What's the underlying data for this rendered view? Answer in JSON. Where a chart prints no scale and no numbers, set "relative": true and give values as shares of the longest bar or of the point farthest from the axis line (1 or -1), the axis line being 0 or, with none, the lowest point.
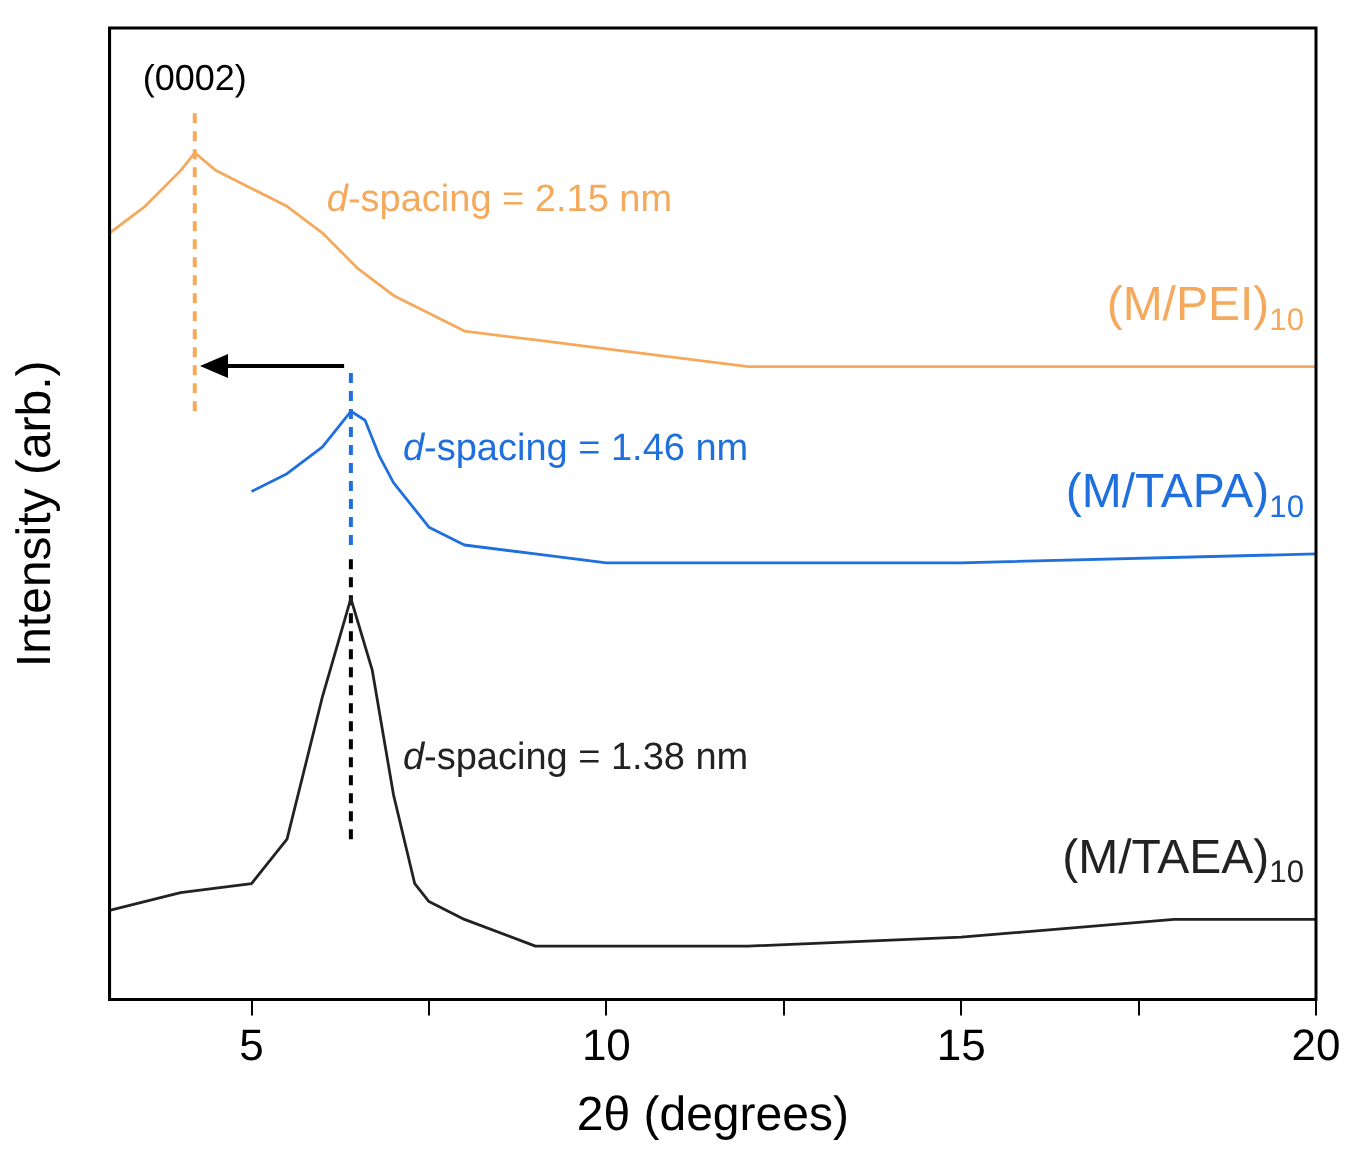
{
  "chart_data": {
    "type": "line",
    "relative": true,
    "xlabel": "2θ (degrees)",
    "ylabel": "Intensity (arb.)",
    "xlim": [
      3,
      20
    ],
    "xticks": [
      5,
      {
        "value": 7.5,
        "label": null
      },
      10,
      {
        "value": 12.5,
        "label": null
      },
      15,
      {
        "value": 17.5,
        "label": null
      },
      20
    ],
    "marker": "none",
    "line_style": "solid",
    "legend": false,
    "grid": false,
    "series": [
      {
        "name": "(M/PEI)$_{10}$",
        "color": "#f5a95c",
        "x": [
          3,
          3.5,
          4,
          4.2,
          4.5,
          5,
          5.5,
          6,
          6.5,
          7,
          7.5,
          8,
          9,
          10,
          12,
          15,
          20
        ],
        "values": [
          0.86,
          0.89,
          0.93,
          0.95,
          0.93,
          0.91,
          0.89,
          0.86,
          0.82,
          0.79,
          0.77,
          0.75,
          0.74,
          0.73,
          0.71,
          0.71,
          0.71
        ]
      },
      {
        "name": "(M/TAPA)$_{10}$",
        "color": "#1f6fdc",
        "x": [
          5,
          5.5,
          6,
          6.2,
          6.4,
          6.6,
          6.8,
          7,
          7.5,
          8,
          9,
          10,
          15,
          20
        ],
        "values": [
          0.57,
          0.59,
          0.62,
          0.64,
          0.66,
          0.65,
          0.61,
          0.58,
          0.53,
          0.51,
          0.5,
          0.49,
          0.49,
          0.5
        ]
      },
      {
        "name": "(M/TAEA)$_{10}$",
        "color": "#222222",
        "x": [
          3,
          4,
          5,
          5.5,
          6,
          6.4,
          6.7,
          7,
          7.3,
          7.5,
          8,
          9,
          10,
          12,
          15,
          18,
          20
        ],
        "values": [
          0.1,
          0.12,
          0.13,
          0.18,
          0.34,
          0.45,
          0.37,
          0.23,
          0.13,
          0.11,
          0.09,
          0.06,
          0.06,
          0.06,
          0.07,
          0.09,
          0.09
        ]
      },
      {
        "color": "#f5a95c",
        "line_style": "dashed",
        "x": [
          4.2,
          4.2
        ],
        "values": [
          0.66,
          1.0
        ]
      },
      {
        "color": "#1f6fdc",
        "line_style": "dashed",
        "x": [
          6.4,
          6.4
        ],
        "values": [
          0.51,
          0.71
        ]
      },
      {
        "color": "#000000",
        "line_style": "dashed",
        "x": [
          6.4,
          6.4
        ],
        "values": [
          0.18,
          0.5
        ]
      }
    ],
    "annotations": [
      "(0002)",
      "d-spacing = 2.15 nm",
      "d-spacing = 1.46 nm",
      "d-spacing = 1.38 nm"
    ]
  }
}
